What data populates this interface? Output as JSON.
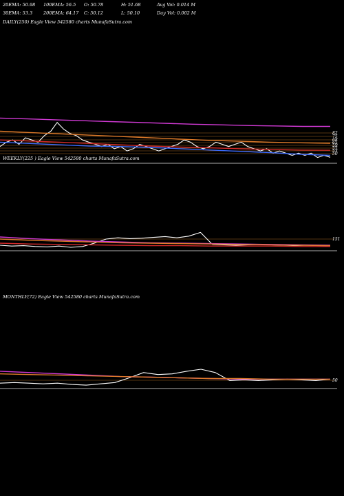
{
  "header": {
    "row1": [
      "20EMA: 50.98",
      "100EMA: 56.5",
      "O: 50.78",
      "H: 51.68",
      "Avg Vol: 0.014  M"
    ],
    "row2": [
      "30EMA: 53.3",
      "200EMA: 64.17",
      "C: 50.12",
      "L: 50.10",
      "Day Vol: 0.002  M"
    ]
  },
  "panels": {
    "daily": {
      "label": "DAILY(250) Eagle   View  542580  charts MunafaSutra.com"
    },
    "weekly": {
      "label": "WEEKLY(225        ) Eagle   View  542580  charts MunafaSutra.com"
    },
    "monthly": {
      "label": "MONTHLY(72) Eagle   View  542580  charts MunafaSutra.com"
    }
  },
  "colors": {
    "price": "#ffffff",
    "ema_blue": "#3b6cff",
    "ema_magenta": "#d23ad6",
    "ema_orange": "#e07b2a",
    "ema_red": "#d42a2a",
    "level_line": "#c8782a"
  },
  "chart_data": [
    {
      "type": "line",
      "panel": "daily",
      "title": "DAILY(250) Eagle   View  542580  charts MunafaSutra.com",
      "y_tick_labels": [
        "82",
        "75",
        "68",
        "65",
        "59",
        "55",
        "53",
        "50"
      ],
      "series": [
        {
          "values": [
            55,
            57,
            58,
            56,
            59,
            58,
            57,
            60,
            62,
            66,
            63,
            61,
            60,
            58,
            57,
            56,
            55,
            56,
            54,
            55,
            53,
            54,
            56,
            55,
            54,
            53,
            54,
            55,
            56,
            58,
            57,
            55,
            54,
            55,
            57,
            56,
            55,
            56,
            57,
            55,
            54,
            53,
            54,
            52,
            53,
            52,
            51,
            52,
            51,
            52,
            50,
            51,
            50.12
          ]
        },
        {
          "values": [
            68,
            67.6,
            67.2,
            66.8,
            66.4,
            66,
            65.6,
            65.2,
            64.9,
            64.6,
            64.4,
            64.2,
            64.17
          ]
        },
        {
          "values": [
            62,
            61.4,
            60.8,
            60.2,
            59.6,
            59,
            58.4,
            57.8,
            57.4,
            57,
            56.7,
            56.5
          ]
        },
        {
          "values": [
            58,
            57.5,
            57,
            56.4,
            55.8,
            55.2,
            54.8,
            54.4,
            54,
            53.7,
            53.4,
            53.3
          ]
        },
        {
          "values": [
            57,
            56.4,
            55.8,
            55.2,
            55,
            54.6,
            54,
            53.4,
            52.8,
            52.2,
            51.5,
            50.98
          ]
        }
      ]
    },
    {
      "type": "line",
      "panel": "weekly",
      "y_tick_labels": [
        "151"
      ],
      "series": [
        {
          "values": [
            120,
            118,
            119,
            117,
            116,
            118,
            115,
            117,
            125,
            135,
            138,
            136,
            137,
            139,
            141,
            138,
            142,
            151,
            122,
            121,
            120,
            121,
            122,
            121,
            120,
            119,
            120,
            119,
            118
          ]
        },
        {
          "values": [
            140,
            136,
            133,
            130,
            128,
            126,
            125,
            124,
            123,
            122,
            121,
            120
          ]
        },
        {
          "values": [
            135,
            132,
            130,
            128,
            126,
            125,
            124,
            123,
            122,
            121,
            120,
            119
          ]
        },
        {
          "values": [
            125,
            123,
            122,
            121,
            120,
            119,
            119,
            118,
            118,
            118,
            117,
            117
          ]
        }
      ]
    },
    {
      "type": "line",
      "panel": "monthly",
      "y_tick_labels": [
        "50"
      ],
      "series": [
        {
          "values": [
            44,
            45,
            44,
            43,
            44,
            42,
            41,
            43,
            45,
            52,
            60,
            57,
            58,
            62,
            65,
            60,
            48,
            49,
            48,
            49,
            50,
            49,
            48,
            50
          ]
        },
        {
          "values": [
            62,
            60,
            58,
            56,
            54,
            53,
            52,
            51,
            50,
            50,
            50,
            50
          ]
        },
        {
          "values": [
            58,
            57,
            56,
            55,
            54,
            53,
            52,
            51,
            51,
            50,
            50,
            50
          ]
        }
      ]
    }
  ]
}
